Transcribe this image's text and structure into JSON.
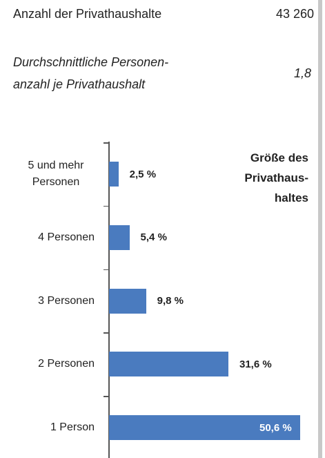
{
  "stats": [
    {
      "label": "Anzahl der Privathaushalte",
      "value": "43 260"
    },
    {
      "label_lines": [
        "Durchschnittliche Personen-",
        "anzahl je Privathaushalt"
      ],
      "value": "1,8"
    }
  ],
  "chart_data": {
    "type": "bar",
    "orientation": "horizontal",
    "title_lines": [
      "Größe des",
      "Privathaus-",
      "haltes"
    ],
    "categories": [
      "5 und mehr Personen",
      "4 Personen",
      "3 Personen",
      "2 Personen",
      "1 Person"
    ],
    "values": [
      2.5,
      5.4,
      9.8,
      31.6,
      50.6
    ],
    "value_labels": [
      "2,5 %",
      "5,4 %",
      "9,8 %",
      "31,6 %",
      "50,6 %"
    ],
    "color": "#4a7bbf"
  }
}
